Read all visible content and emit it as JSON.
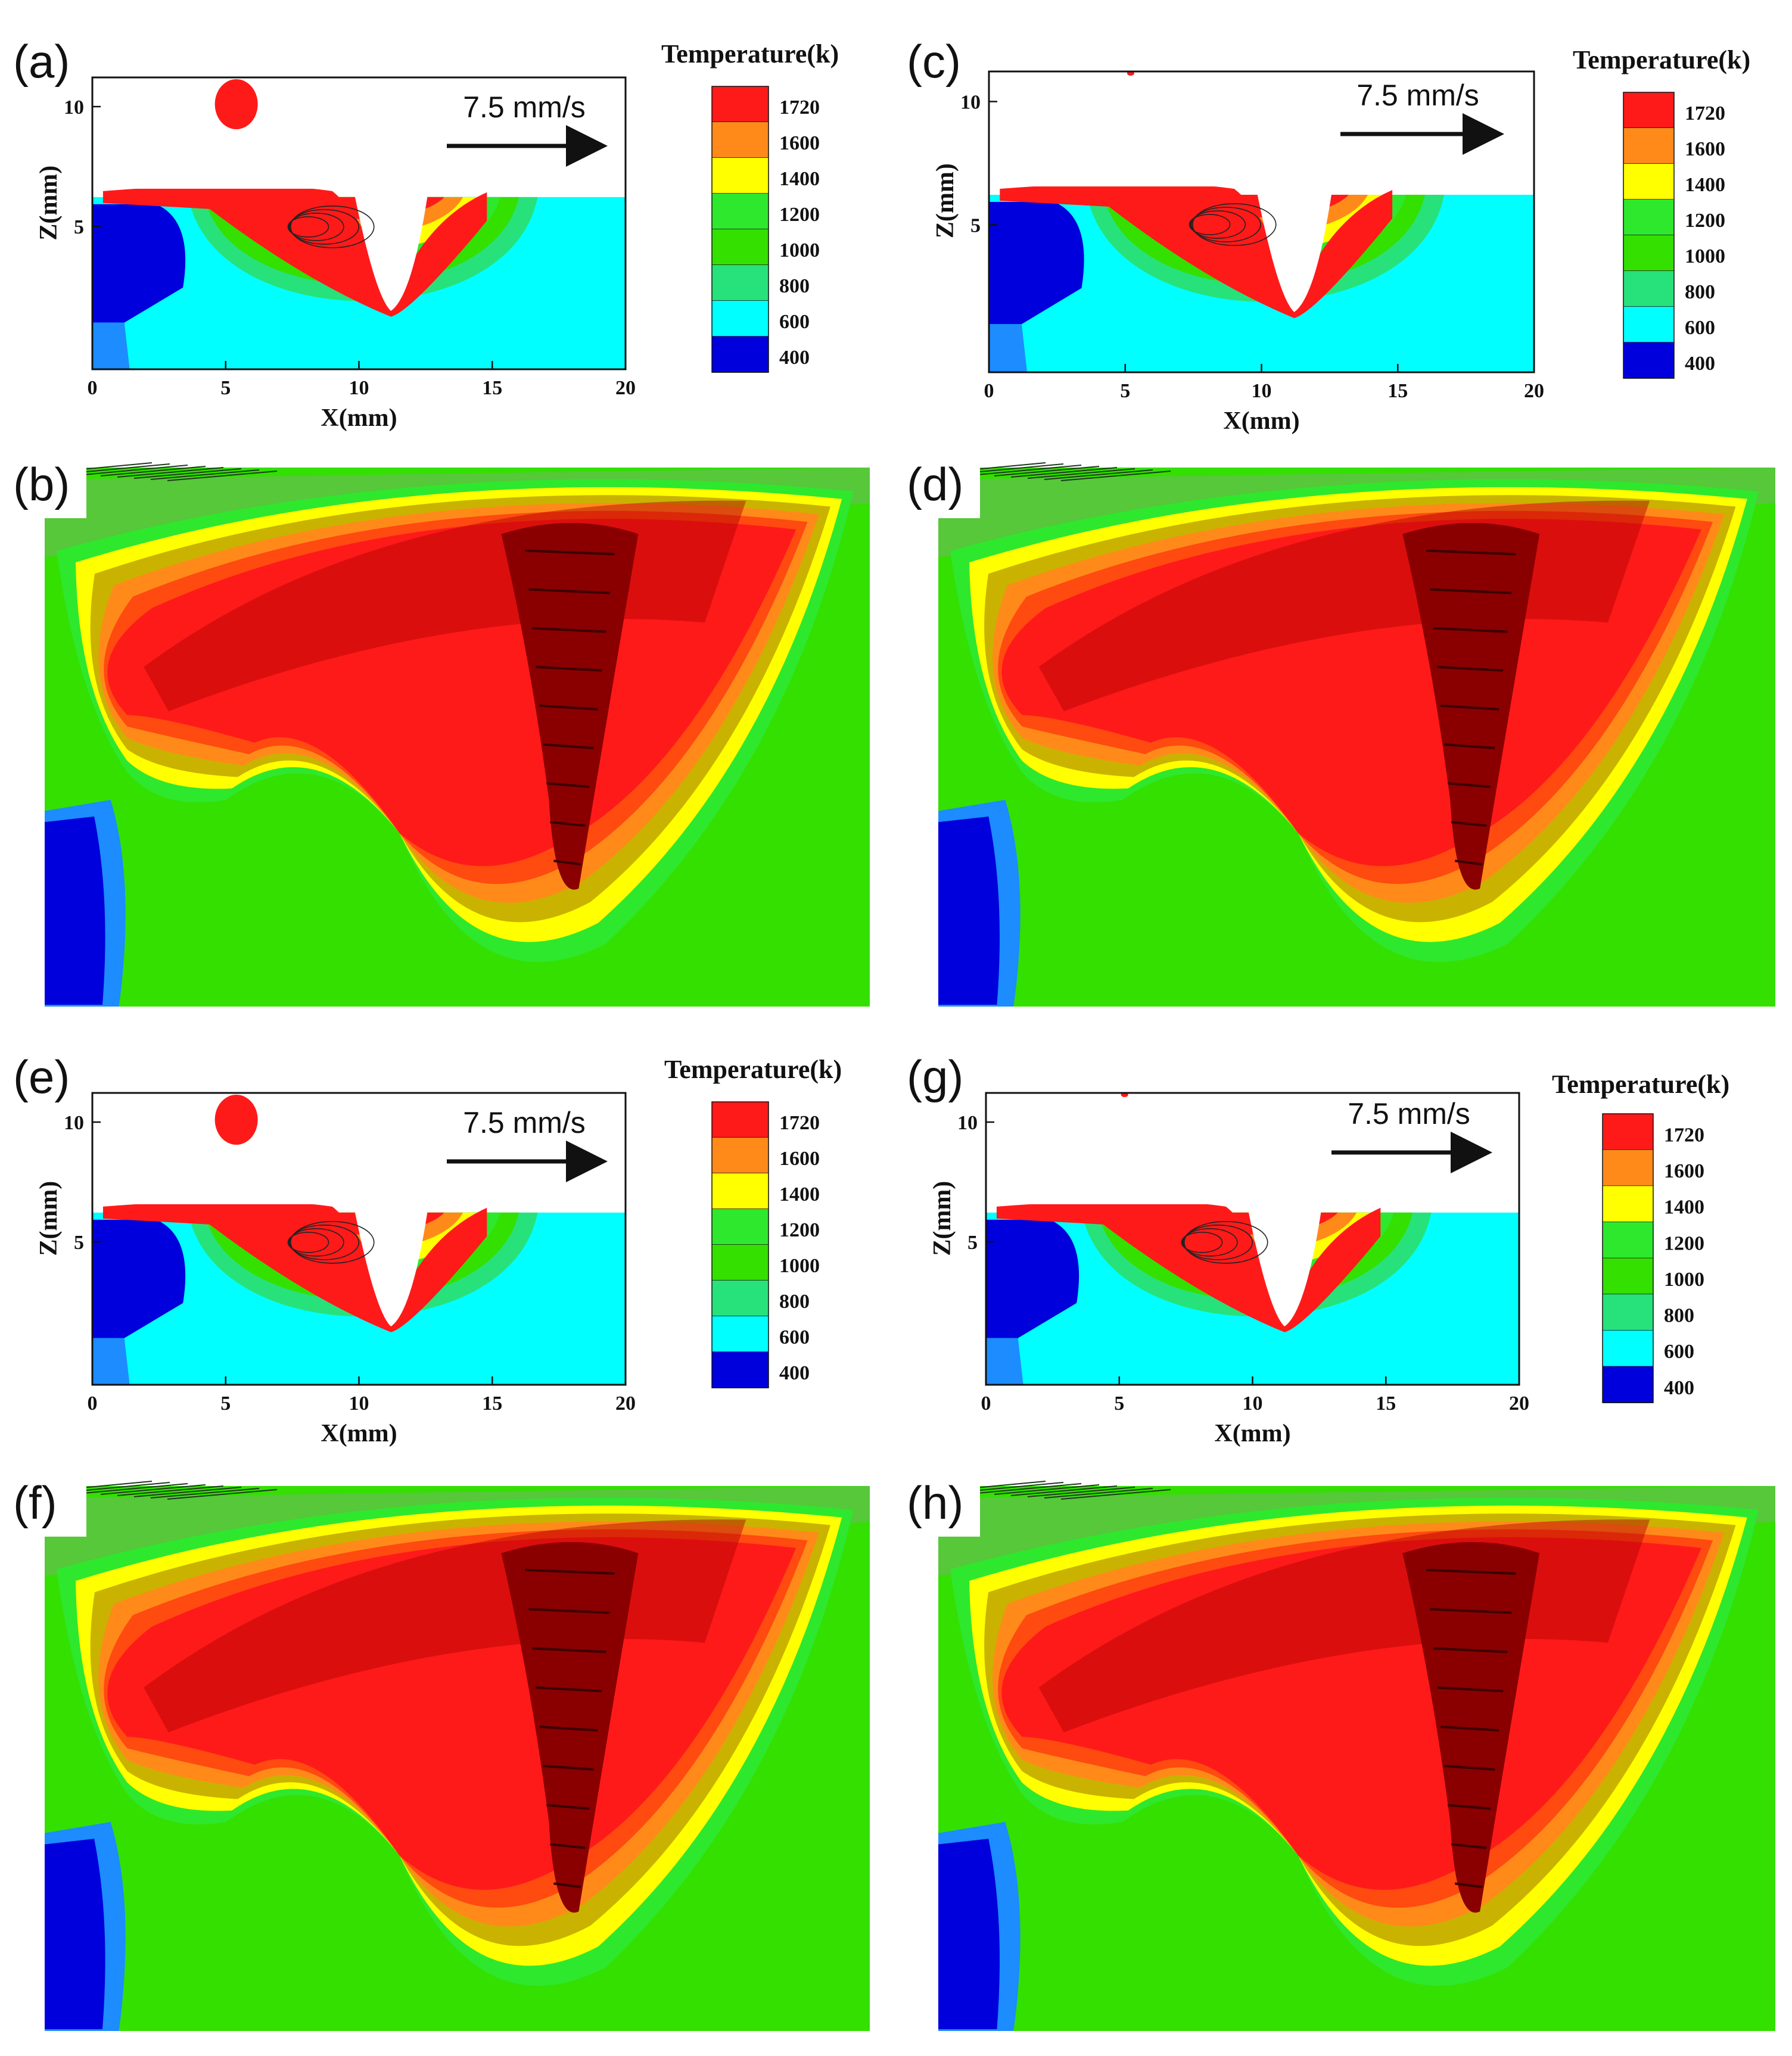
{
  "figure": {
    "speed_label": "7.5 mm/s",
    "legend_title": "Temperature(k)",
    "legend_levels": [
      "1720",
      "1600",
      "1400",
      "1200",
      "1000",
      "800",
      "600",
      "400"
    ],
    "colors": {
      "c1720": "#ff1a1a",
      "c1600": "#ff8a1a",
      "c1400": "#ffff00",
      "c1200": "#2ee82e",
      "c1000": "#33e000",
      "c800": "#27e27a",
      "c600": "#00ffff",
      "c400_light": "#1c8cff",
      "c400": "#0000dd",
      "dark_red": "#b00000"
    }
  },
  "chart_data": [
    {
      "panel": "(a)",
      "type": "heatmap",
      "title": "",
      "xlabel": "X(mm)",
      "ylabel": "Z(mm)",
      "xlim": [
        0,
        20
      ],
      "x_ticks": [
        "0",
        "5",
        "10",
        "15",
        "20"
      ],
      "y_ticks": [
        "5",
        "10"
      ],
      "annotation": "7.5 mm/s",
      "colorbar_title": "Temperature(k)",
      "colorbar_levels": [
        1720,
        1600,
        1400,
        1200,
        1000,
        800,
        600,
        400
      ]
    },
    {
      "panel": "(c)",
      "type": "heatmap",
      "xlabel": "X(mm)",
      "ylabel": "Z(mm)",
      "xlim": [
        0,
        20
      ],
      "x_ticks": [
        "0",
        "5",
        "10",
        "15",
        "20"
      ],
      "y_ticks": [
        "5",
        "10"
      ],
      "annotation": "7.5 mm/s",
      "colorbar_title": "Temperature(k)",
      "colorbar_levels": [
        1720,
        1600,
        1400,
        1200,
        1000,
        800,
        600,
        400
      ]
    },
    {
      "panel": "(e)",
      "type": "heatmap",
      "xlabel": "X(mm)",
      "ylabel": "Z(mm)",
      "xlim": [
        0,
        20
      ],
      "x_ticks": [
        "0",
        "5",
        "10",
        "15",
        "20"
      ],
      "y_ticks": [
        "5",
        "10"
      ],
      "annotation": "7.5 mm/s",
      "colorbar_title": "Temperature(k)",
      "colorbar_levels": [
        1720,
        1600,
        1400,
        1200,
        1000,
        800,
        600,
        400
      ]
    },
    {
      "panel": "(g)",
      "type": "heatmap",
      "xlabel": "X(mm)",
      "ylabel": "Z(mm)",
      "xlim": [
        0,
        20
      ],
      "x_ticks": [
        "0",
        "5",
        "10",
        "15",
        "20"
      ],
      "y_ticks": [
        "5",
        "10"
      ],
      "annotation": "7.5 mm/s",
      "colorbar_title": "Temperature(k)",
      "colorbar_levels": [
        1720,
        1600,
        1400,
        1200,
        1000,
        800,
        600,
        400
      ]
    },
    {
      "panel": "(b)",
      "type": "heatmap",
      "view": "3d"
    },
    {
      "panel": "(d)",
      "type": "heatmap",
      "view": "3d"
    },
    {
      "panel": "(f)",
      "type": "heatmap",
      "view": "3d"
    },
    {
      "panel": "(h)",
      "type": "heatmap",
      "view": "3d"
    }
  ]
}
